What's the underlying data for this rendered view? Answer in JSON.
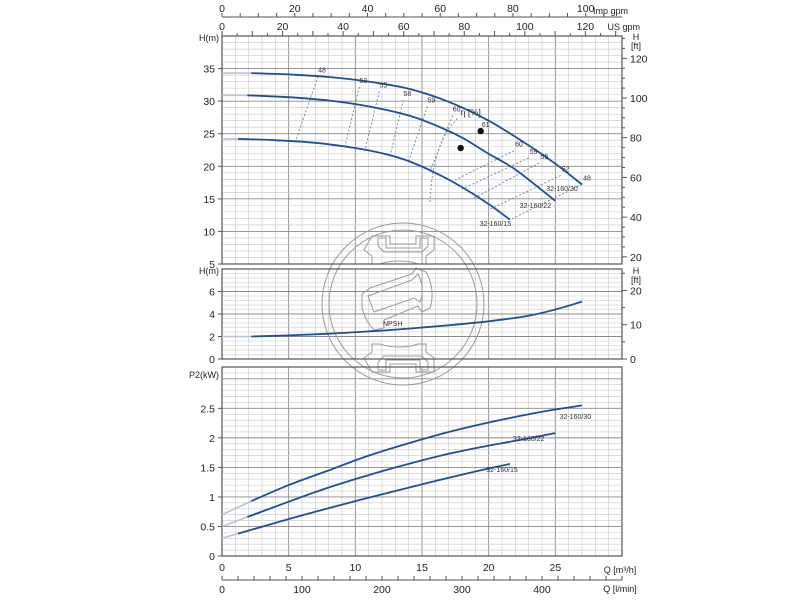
{
  "chart_data": {
    "type": "line",
    "title": "",
    "colors": {
      "curve": "#1f4e9a",
      "extension": "#b8c2d0",
      "iso_eff": "#6a7ea8",
      "grid_major": "#8a8a8a",
      "grid_minor": "#c8c8c8",
      "axis": "#555555",
      "watermark": "#9a9a9a"
    },
    "x_axis": {
      "label": "Q [m³/h]",
      "range": [
        0,
        30
      ],
      "ticks": [
        0,
        5,
        10,
        15,
        20,
        25
      ],
      "secondary_bottom": {
        "label": "Q [l/min]",
        "ticks": [
          0,
          100,
          200,
          300,
          400
        ],
        "factor": 16.6667
      },
      "secondary_top_us": {
        "label": "US gpm",
        "ticks": [
          0,
          20,
          40,
          60,
          80,
          100,
          120
        ],
        "factor": 4.4029
      },
      "secondary_top_imp": {
        "label": "Imp gpm",
        "ticks": [
          0,
          20,
          40,
          60,
          80,
          100
        ],
        "factor": 3.6662
      }
    },
    "panels": [
      {
        "id": "head",
        "ylabel": "H(m)",
        "ylabel_right": "H [ft]",
        "ylim": [
          5,
          40
        ],
        "yticks": [
          5,
          10,
          15,
          20,
          25,
          30,
          35
        ],
        "yticks_right": [
          20,
          40,
          60,
          80,
          100,
          120
        ],
        "series": [
          {
            "name": "32-160/30",
            "label_pos": [
              25.5,
              16.2
            ],
            "x": [
              0,
              2.2,
              5,
              8,
              11,
              14,
              17,
              20,
              23,
              25,
              27
            ],
            "y": [
              34.3,
              34.3,
              34.1,
              33.7,
              33.0,
              31.9,
              29.9,
              27.0,
              23.2,
              20.4,
              17.2
            ]
          },
          {
            "name": "32-160/22",
            "label_pos": [
              23.5,
              13.6
            ],
            "x": [
              0,
              1.9,
              5,
              8,
              11,
              14,
              16,
              18,
              20,
              22,
              25
            ],
            "y": [
              30.9,
              30.9,
              30.6,
              30.1,
              29.2,
              27.8,
              26.3,
              24.4,
              21.9,
              19.5,
              14.7
            ]
          },
          {
            "name": "32-160/15",
            "label_pos": [
              20.5,
              10.8
            ],
            "x": [
              0,
              1.2,
              4,
              7,
              10,
              12,
              14,
              16,
              18,
              20,
              21.6
            ],
            "y": [
              24.2,
              24.2,
              24.0,
              23.6,
              22.8,
              22.0,
              20.8,
              19.0,
              16.8,
              14.2,
              11.8
            ]
          }
        ],
        "bep_points": [
          {
            "x": 19.4,
            "y": 25.4
          },
          {
            "x": 17.9,
            "y": 22.8
          }
        ],
        "eta_label": {
          "text": "η [%]",
          "x": 18.2,
          "y": 27.8
        },
        "iso_efficiency_left": [
          {
            "label": "48",
            "top": [
              7.2,
              33.8
            ],
            "bottom": [
              5.5,
              23.8
            ]
          },
          {
            "label": "52",
            "top": [
              10.3,
              32.2
            ],
            "bottom": [
              9.2,
              22.9
            ]
          },
          {
            "label": "55",
            "top": [
              11.8,
              31.5
            ],
            "bottom": [
              10.7,
              22.3
            ]
          },
          {
            "label": "58",
            "top": [
              13.6,
              30.2
            ],
            "bottom": [
              12.6,
              21.5
            ]
          },
          {
            "label": "59",
            "top": [
              15.4,
              29.2
            ],
            "bottom": [
              14.0,
              20.8
            ]
          },
          {
            "label": "60",
            "top": [
              17.3,
              27.8
            ],
            "bottom": [
              15.6,
              19.3
            ]
          }
        ],
        "iso_efficiency_right": [
          {
            "label": "61",
            "top": [
              19.4,
              25.4
            ]
          },
          {
            "label": "60",
            "top": [
              21.9,
              22.4
            ],
            "bottom": [
              17.2,
              17.6
            ]
          },
          {
            "label": "59",
            "top": [
              23.0,
              21.3
            ],
            "bottom": [
              18.0,
              16.5
            ]
          },
          {
            "label": "55",
            "top": [
              23.8,
              20.5
            ],
            "bottom": [
              18.8,
              15.0
            ]
          },
          {
            "label": "52",
            "top": [
              25.4,
              18.6
            ],
            "bottom": [
              20.0,
              13.3
            ]
          },
          {
            "label": "48",
            "top": [
              27.0,
              17.2
            ],
            "bottom": [
              21.6,
              11.8
            ]
          }
        ]
      },
      {
        "id": "npsh",
        "ylabel": "H(m)",
        "ylabel_right": "H [ft]",
        "ylim": [
          0,
          8
        ],
        "yticks": [
          0,
          2,
          4,
          6
        ],
        "yticks_right": [
          0,
          10,
          20
        ],
        "series": [
          {
            "name": "NPSH",
            "label_pos": [
              12.8,
              2.95
            ],
            "x": [
              0,
              2.2,
              5,
              8,
              11,
              14,
              17,
              20,
              23,
              25,
              27
            ],
            "y": [
              2.0,
              2.0,
              2.1,
              2.25,
              2.45,
              2.7,
              3.0,
              3.35,
              3.85,
              4.4,
              5.1
            ]
          }
        ]
      },
      {
        "id": "power",
        "ylabel": "P2(kW)",
        "ylim": [
          0,
          3.2
        ],
        "yticks": [
          0,
          0.5,
          1,
          1.5,
          2,
          2.5
        ],
        "series": [
          {
            "name": "32-160/30",
            "label_pos": [
              26.5,
              2.32
            ],
            "x": [
              0,
              2.2,
              5,
              8,
              11,
              14,
              17,
              20,
              23,
              25,
              27
            ],
            "y": [
              0.7,
              0.93,
              1.2,
              1.45,
              1.7,
              1.91,
              2.1,
              2.26,
              2.4,
              2.48,
              2.55
            ]
          },
          {
            "name": "32-160/22",
            "label_pos": [
              23.0,
              1.95
            ],
            "x": [
              0,
              1.9,
              5,
              8,
              11,
              14,
              17,
              20,
              22,
              25
            ],
            "y": [
              0.5,
              0.66,
              0.92,
              1.16,
              1.37,
              1.56,
              1.73,
              1.87,
              1.95,
              2.08
            ]
          },
          {
            "name": "32-160/15",
            "label_pos": [
              21.0,
              1.42
            ],
            "x": [
              0,
              1.2,
              4,
              7,
              10,
              13,
              16,
              19,
              21.6
            ],
            "y": [
              0.3,
              0.38,
              0.56,
              0.75,
              0.93,
              1.1,
              1.27,
              1.43,
              1.56
            ]
          }
        ]
      }
    ]
  },
  "labels": {
    "imp_gpm": "Imp gpm",
    "us_gpm": "US gpm",
    "q_m3h": "Q [m³/h]",
    "q_lmin": "Q [l/min]",
    "head_left": "H(m)",
    "head_right_h": "H",
    "head_right_ft": "[ft]",
    "npsh_left": "H(m)",
    "power_left": "P2(kW)",
    "eta": "η [%]",
    "npsh": "NPSH"
  }
}
